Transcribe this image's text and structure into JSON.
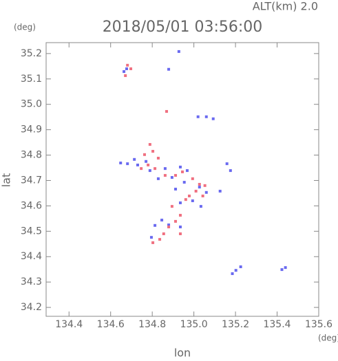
{
  "chart_data": {
    "type": "scatter",
    "title": "2018/05/01 03:56:00",
    "altitude_label": "ALT(km) 2.0",
    "y_unit": "(deg)",
    "x_unit": "(deg)",
    "xlabel": "lon",
    "ylabel": "lat",
    "xlim": [
      134.29,
      135.6
    ],
    "ylim": [
      34.165,
      35.243
    ],
    "xticks": [
      134.4,
      134.6,
      134.8,
      {
        "value": 135,
        "label": "135.0"
      },
      135.2,
      135.4,
      135.6
    ],
    "yticks": [
      34.2,
      34.3,
      34.4,
      34.5,
      34.6,
      34.7,
      34.8,
      34.9,
      {
        "value": 35,
        "label": "35.0"
      },
      35.1,
      35.2
    ],
    "series": [
      {
        "color": "#6a6af0",
        "x": [
          134.677,
          134.664,
          134.879,
          134.928,
          135.06,
          135.093,
          135.02,
          134.648,
          134.681,
          134.73,
          134.77,
          134.789,
          134.862,
          134.935,
          134.968,
          134.895,
          134.954,
          135.027,
          135.06,
          135.159,
          135.176,
          135.126,
          134.813,
          134.846,
          134.879,
          134.935,
          134.796,
          135.225,
          135.202,
          135.185,
          135.423,
          135.44,
          135.034,
          134.994,
          134.935,
          134.714,
          134.829,
          134.912
        ],
        "y": [
          35.14,
          35.129,
          35.138,
          35.208,
          34.951,
          34.943,
          34.951,
          34.769,
          34.766,
          34.761,
          34.775,
          34.739,
          34.747,
          34.753,
          34.739,
          34.712,
          34.693,
          34.674,
          34.653,
          34.766,
          34.739,
          34.658,
          34.523,
          34.544,
          34.525,
          34.517,
          34.476,
          34.36,
          34.346,
          34.333,
          34.349,
          34.357,
          34.598,
          34.62,
          34.612,
          34.783,
          34.707,
          34.666
        ]
      },
      {
        "color": "#f07080",
        "x": [
          134.681,
          134.697,
          134.671,
          134.869,
          134.789,
          134.803,
          134.78,
          134.813,
          134.862,
          134.912,
          134.945,
          134.994,
          135.027,
          134.978,
          135.053,
          134.961,
          134.895,
          134.935,
          134.912,
          134.879,
          134.855,
          134.836,
          134.803,
          134.935,
          134.829,
          134.763,
          134.747,
          135.01,
          135.043
        ],
        "y": [
          35.154,
          35.14,
          35.113,
          34.972,
          34.842,
          34.815,
          34.761,
          34.747,
          34.72,
          34.72,
          34.734,
          34.707,
          34.685,
          34.639,
          34.68,
          34.625,
          34.598,
          34.563,
          34.539,
          34.517,
          34.49,
          34.468,
          34.455,
          34.49,
          34.788,
          34.802,
          34.747,
          34.658,
          34.639
        ]
      }
    ]
  }
}
